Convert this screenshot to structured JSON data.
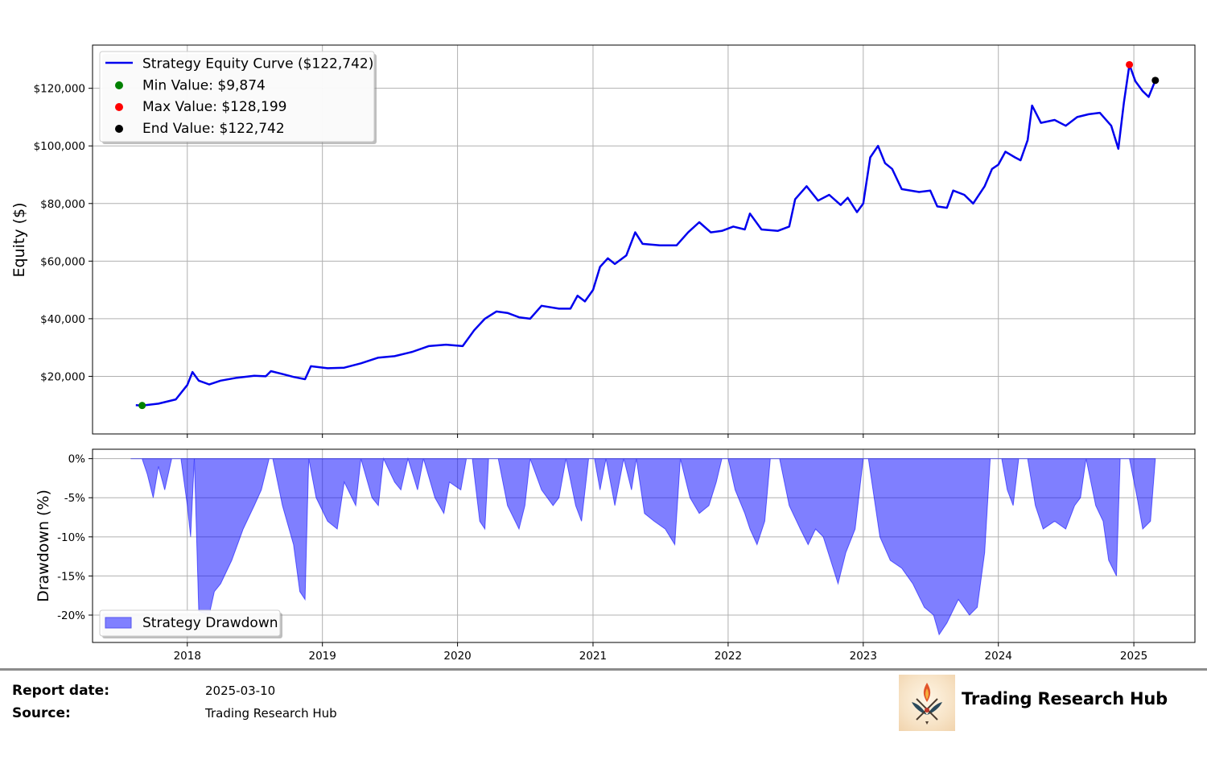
{
  "chart_data": [
    {
      "type": "line",
      "ylabel": "Equity ($)",
      "xlabel": "",
      "ylim": [
        0,
        135000
      ],
      "xlim": [
        "2017-04-20",
        "2025-06-15"
      ],
      "x_ticks": [
        "2018",
        "2019",
        "2020",
        "2021",
        "2022",
        "2023",
        "2024",
        "2025"
      ],
      "y_ticks": [
        "$20,000",
        "$40,000",
        "$60,000",
        "$80,000",
        "$100,000",
        "$120,000"
      ],
      "y_tick_values": [
        20000,
        40000,
        60000,
        80000,
        100000,
        120000
      ],
      "grid": true,
      "legend_placement": "top-left",
      "series": [
        {
          "name": "Strategy Equity Curve ($122,742)",
          "color": "#0000ee",
          "points": [
            [
              "2017-08-15",
              10000
            ],
            [
              "2017-09-01",
              9874
            ],
            [
              "2017-10-15",
              10500
            ],
            [
              "2017-12-01",
              12000
            ],
            [
              "2018-01-01",
              17000
            ],
            [
              "2018-01-15",
              21500
            ],
            [
              "2018-02-01",
              18500
            ],
            [
              "2018-03-01",
              17200
            ],
            [
              "2018-04-01",
              18500
            ],
            [
              "2018-05-15",
              19500
            ],
            [
              "2018-07-01",
              20200
            ],
            [
              "2018-08-01",
              20000
            ],
            [
              "2018-08-15",
              21800
            ],
            [
              "2018-09-15",
              20800
            ],
            [
              "2018-10-15",
              19800
            ],
            [
              "2018-11-15",
              19000
            ],
            [
              "2018-12-01",
              23500
            ],
            [
              "2019-01-15",
              22800
            ],
            [
              "2019-03-01",
              23000
            ],
            [
              "2019-04-15",
              24500
            ],
            [
              "2019-06-01",
              26500
            ],
            [
              "2019-07-15",
              27000
            ],
            [
              "2019-09-01",
              28500
            ],
            [
              "2019-10-15",
              30500
            ],
            [
              "2019-12-01",
              31000
            ],
            [
              "2020-01-15",
              30500
            ],
            [
              "2020-02-15",
              36000
            ],
            [
              "2020-03-15",
              40000
            ],
            [
              "2020-04-15",
              42500
            ],
            [
              "2020-05-15",
              42000
            ],
            [
              "2020-06-15",
              40500
            ],
            [
              "2020-07-15",
              40000
            ],
            [
              "2020-08-15",
              44500
            ],
            [
              "2020-10-01",
              43500
            ],
            [
              "2020-11-01",
              43500
            ],
            [
              "2020-11-20",
              48000
            ],
            [
              "2020-12-10",
              46000
            ],
            [
              "2021-01-01",
              50000
            ],
            [
              "2021-01-20",
              58000
            ],
            [
              "2021-02-10",
              61000
            ],
            [
              "2021-03-01",
              59000
            ],
            [
              "2021-04-01",
              62000
            ],
            [
              "2021-04-25",
              70000
            ],
            [
              "2021-05-15",
              66000
            ],
            [
              "2021-07-01",
              65500
            ],
            [
              "2021-08-15",
              65500
            ],
            [
              "2021-09-15",
              70000
            ],
            [
              "2021-10-15",
              73500
            ],
            [
              "2021-11-15",
              70000
            ],
            [
              "2021-12-15",
              70500
            ],
            [
              "2022-01-15",
              72000
            ],
            [
              "2022-02-15",
              71000
            ],
            [
              "2022-03-01",
              76500
            ],
            [
              "2022-04-01",
              71000
            ],
            [
              "2022-05-15",
              70500
            ],
            [
              "2022-06-15",
              72000
            ],
            [
              "2022-07-01",
              81500
            ],
            [
              "2022-08-01",
              86000
            ],
            [
              "2022-09-01",
              81000
            ],
            [
              "2022-10-01",
              83000
            ],
            [
              "2022-11-01",
              79500
            ],
            [
              "2022-11-20",
              82000
            ],
            [
              "2022-12-15",
              77000
            ],
            [
              "2023-01-01",
              80000
            ],
            [
              "2023-01-20",
              96000
            ],
            [
              "2023-02-10",
              100000
            ],
            [
              "2023-03-01",
              94000
            ],
            [
              "2023-03-20",
              92000
            ],
            [
              "2023-04-15",
              85000
            ],
            [
              "2023-06-01",
              84000
            ],
            [
              "2023-07-01",
              84500
            ],
            [
              "2023-07-20",
              79000
            ],
            [
              "2023-08-15",
              78500
            ],
            [
              "2023-09-01",
              84500
            ],
            [
              "2023-10-01",
              83000
            ],
            [
              "2023-10-25",
              80000
            ],
            [
              "2023-11-25",
              86000
            ],
            [
              "2023-12-15",
              92000
            ],
            [
              "2024-01-01",
              93500
            ],
            [
              "2024-01-20",
              98000
            ],
            [
              "2024-02-15",
              96000
            ],
            [
              "2024-03-01",
              95000
            ],
            [
              "2024-03-20",
              102000
            ],
            [
              "2024-04-01",
              114000
            ],
            [
              "2024-04-25",
              108000
            ],
            [
              "2024-06-01",
              109000
            ],
            [
              "2024-07-01",
              107000
            ],
            [
              "2024-08-01",
              110000
            ],
            [
              "2024-09-01",
              111000
            ],
            [
              "2024-10-01",
              111500
            ],
            [
              "2024-11-01",
              107000
            ],
            [
              "2024-11-20",
              99000
            ],
            [
              "2024-12-05",
              115000
            ],
            [
              "2024-12-20",
              128199
            ],
            [
              "2025-01-05",
              122500
            ],
            [
              "2025-01-25",
              119000
            ],
            [
              "2025-02-10",
              117000
            ],
            [
              "2025-02-28",
              122742
            ]
          ]
        }
      ],
      "markers": [
        {
          "name": "Min Value: $9,874",
          "x": "2017-09-01",
          "y": 9874,
          "color": "#008000"
        },
        {
          "name": "Max Value: $128,199",
          "x": "2024-12-20",
          "y": 128199,
          "color": "#ff0000"
        },
        {
          "name": "End Value: $122,742",
          "x": "2025-02-28",
          "y": 122742,
          "color": "#000000"
        }
      ]
    },
    {
      "type": "area",
      "ylabel": "Drawdown (%)",
      "xlabel": "",
      "ylim": [
        -23.5,
        1.2
      ],
      "xlim": [
        "2017-04-20",
        "2025-06-15"
      ],
      "x_ticks": [
        "2018",
        "2019",
        "2020",
        "2021",
        "2022",
        "2023",
        "2024",
        "2025"
      ],
      "y_ticks": [
        "0%",
        "-5%",
        "-10%",
        "-15%",
        "-20%"
      ],
      "y_tick_values": [
        0,
        -5,
        -10,
        -15,
        -20
      ],
      "grid": true,
      "legend_placement": "bottom-left",
      "series": [
        {
          "name": "Strategy Drawdown",
          "color": "#0000ff",
          "fill_opacity": 0.5,
          "points": [
            [
              "2017-08-01",
              0
            ],
            [
              "2017-09-01",
              0
            ],
            [
              "2017-09-15",
              -2
            ],
            [
              "2017-10-01",
              -5
            ],
            [
              "2017-10-15",
              -1
            ],
            [
              "2017-11-01",
              -4
            ],
            [
              "2017-11-20",
              0
            ],
            [
              "2017-12-15",
              0
            ],
            [
              "2018-01-01",
              -6
            ],
            [
              "2018-01-10",
              -10
            ],
            [
              "2018-01-20",
              0
            ],
            [
              "2018-02-01",
              -19.5
            ],
            [
              "2018-03-01",
              -20
            ],
            [
              "2018-03-15",
              -17
            ],
            [
              "2018-04-01",
              -16
            ],
            [
              "2018-05-01",
              -13
            ],
            [
              "2018-06-01",
              -9
            ],
            [
              "2018-07-01",
              -6
            ],
            [
              "2018-07-20",
              -4
            ],
            [
              "2018-08-10",
              0
            ],
            [
              "2018-08-20",
              0
            ],
            [
              "2018-09-15",
              -6
            ],
            [
              "2018-10-15",
              -11
            ],
            [
              "2018-11-01",
              -17
            ],
            [
              "2018-11-15",
              -18
            ],
            [
              "2018-11-25",
              0
            ],
            [
              "2018-12-15",
              -5
            ],
            [
              "2019-01-15",
              -8
            ],
            [
              "2019-02-10",
              -9
            ],
            [
              "2019-03-01",
              -3
            ],
            [
              "2019-04-01",
              -6
            ],
            [
              "2019-04-15",
              0
            ],
            [
              "2019-05-15",
              -5
            ],
            [
              "2019-06-01",
              -6
            ],
            [
              "2019-06-15",
              0
            ],
            [
              "2019-07-15",
              -3
            ],
            [
              "2019-08-01",
              -4
            ],
            [
              "2019-08-20",
              0
            ],
            [
              "2019-09-15",
              -4
            ],
            [
              "2019-10-01",
              0
            ],
            [
              "2019-11-01",
              -5
            ],
            [
              "2019-11-25",
              -7
            ],
            [
              "2019-12-10",
              -3
            ],
            [
              "2020-01-10",
              -4
            ],
            [
              "2020-01-25",
              0
            ],
            [
              "2020-02-10",
              0
            ],
            [
              "2020-03-01",
              -8
            ],
            [
              "2020-03-15",
              -9
            ],
            [
              "2020-03-25",
              0
            ],
            [
              "2020-04-20",
              0
            ],
            [
              "2020-05-15",
              -6
            ],
            [
              "2020-06-15",
              -9
            ],
            [
              "2020-07-01",
              -6
            ],
            [
              "2020-07-15",
              0
            ],
            [
              "2020-08-15",
              -4
            ],
            [
              "2020-09-15",
              -6
            ],
            [
              "2020-10-01",
              -5
            ],
            [
              "2020-10-20",
              0
            ],
            [
              "2020-11-15",
              -6
            ],
            [
              "2020-12-01",
              -8
            ],
            [
              "2020-12-20",
              0
            ],
            [
              "2021-01-05",
              0
            ],
            [
              "2021-01-20",
              -4
            ],
            [
              "2021-02-05",
              0
            ],
            [
              "2021-03-01",
              -6
            ],
            [
              "2021-03-25",
              0
            ],
            [
              "2021-04-15",
              -4
            ],
            [
              "2021-04-28",
              0
            ],
            [
              "2021-05-20",
              -7
            ],
            [
              "2021-06-15",
              -8
            ],
            [
              "2021-07-15",
              -9
            ],
            [
              "2021-08-10",
              -11
            ],
            [
              "2021-08-25",
              0
            ],
            [
              "2021-09-20",
              -5
            ],
            [
              "2021-10-15",
              -7
            ],
            [
              "2021-11-10",
              -6
            ],
            [
              "2021-11-30",
              -3
            ],
            [
              "2021-12-15",
              0
            ],
            [
              "2022-01-01",
              0
            ],
            [
              "2022-01-20",
              -4
            ],
            [
              "2022-02-15",
              -7
            ],
            [
              "2022-03-01",
              -9
            ],
            [
              "2022-03-20",
              -11
            ],
            [
              "2022-04-10",
              -8
            ],
            [
              "2022-04-25",
              0
            ],
            [
              "2022-05-20",
              0
            ],
            [
              "2022-06-15",
              -6
            ],
            [
              "2022-07-15",
              -9
            ],
            [
              "2022-08-05",
              -11
            ],
            [
              "2022-08-25",
              -9
            ],
            [
              "2022-09-15",
              -10
            ],
            [
              "2022-10-05",
              -13
            ],
            [
              "2022-10-25",
              -16
            ],
            [
              "2022-11-15",
              -12
            ],
            [
              "2022-12-10",
              -9
            ],
            [
              "2023-01-01",
              0
            ],
            [
              "2023-01-15",
              0
            ],
            [
              "2023-02-15",
              -10
            ],
            [
              "2023-03-15",
              -13
            ],
            [
              "2023-04-15",
              -14
            ],
            [
              "2023-05-15",
              -16
            ],
            [
              "2023-06-15",
              -19
            ],
            [
              "2023-07-10",
              -20
            ],
            [
              "2023-07-25",
              -22.5
            ],
            [
              "2023-08-15",
              -21
            ],
            [
              "2023-09-15",
              -18
            ],
            [
              "2023-10-15",
              -20
            ],
            [
              "2023-11-05",
              -19
            ],
            [
              "2023-11-25",
              -12
            ],
            [
              "2023-12-10",
              0
            ],
            [
              "2024-01-10",
              0
            ],
            [
              "2024-01-25",
              -4
            ],
            [
              "2024-02-10",
              -6
            ],
            [
              "2024-02-25",
              0
            ],
            [
              "2024-03-20",
              0
            ],
            [
              "2024-04-10",
              -6
            ],
            [
              "2024-05-01",
              -9
            ],
            [
              "2024-06-01",
              -8
            ],
            [
              "2024-07-01",
              -9
            ],
            [
              "2024-07-25",
              -6
            ],
            [
              "2024-08-10",
              -5
            ],
            [
              "2024-08-25",
              0
            ],
            [
              "2024-09-20",
              -6
            ],
            [
              "2024-10-10",
              -8
            ],
            [
              "2024-10-25",
              -13
            ],
            [
              "2024-11-15",
              -15
            ],
            [
              "2024-11-25",
              0
            ],
            [
              "2024-12-20",
              0
            ],
            [
              "2025-01-10",
              -5
            ],
            [
              "2025-01-25",
              -9
            ],
            [
              "2025-02-15",
              -8
            ],
            [
              "2025-02-28",
              0
            ]
          ]
        }
      ]
    }
  ],
  "footer": {
    "report_date_label": "Report date:",
    "report_date_value": "2025-03-10",
    "source_label": "Source:",
    "source_value": "Trading Research Hub",
    "brand_name": "Trading Research Hub",
    "rule_color": "#8c8c8c"
  }
}
